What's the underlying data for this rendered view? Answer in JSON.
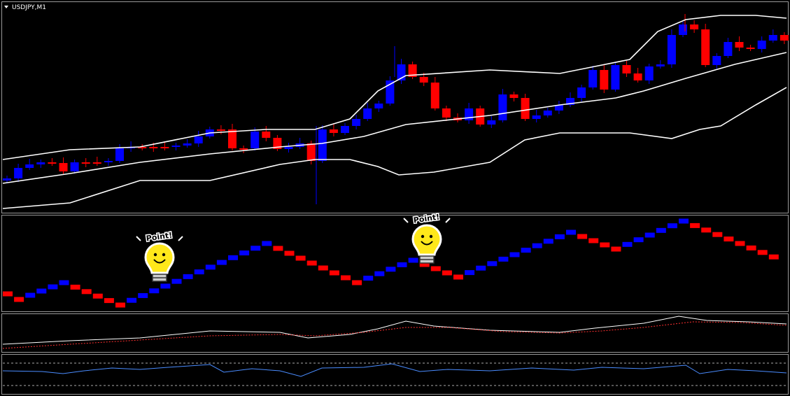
{
  "title": "USDJPY,M1",
  "annotations": [
    "Point!",
    "Point!"
  ]
}
